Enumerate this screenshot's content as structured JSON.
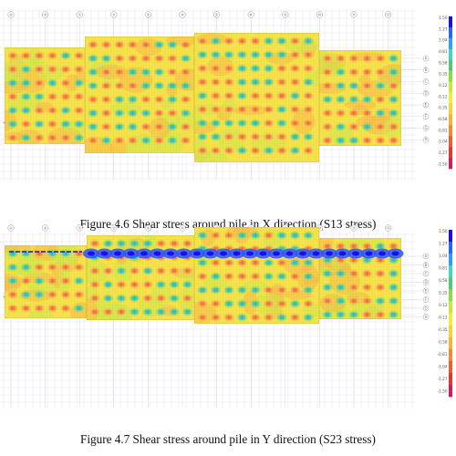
{
  "figures": [
    {
      "id": "fig1",
      "caption": "Figure 4.6 Shear stress around pile in X direction (S13 stress)",
      "legend_values": [
        "1.50",
        "1.27",
        "1.04",
        "0.81",
        "0.58",
        "0.35",
        "0.12",
        "-0.12",
        "-0.35",
        "-0.58",
        "-0.81",
        "-1.04",
        "-1.27",
        "-1.50"
      ],
      "legend_colors": [
        "#1a0df0",
        "#2166ff",
        "#29a0ff",
        "#3fd7c0",
        "#50c878",
        "#8fdb3e",
        "#c9e93a",
        "#f4ee3b",
        "#f7d33a",
        "#f6b23a",
        "#f18a36",
        "#ea5f31",
        "#e0382c",
        "#d41a5a"
      ],
      "grid_columns": [
        "①",
        "②",
        "③",
        "④",
        "⑤",
        "⑥",
        "⑦",
        "⑧",
        "⑨",
        "⑩",
        "⑪",
        "⑫"
      ],
      "grid_rows": [
        "A",
        "B",
        "C",
        "D",
        "E",
        "F",
        "G",
        "H"
      ]
    },
    {
      "id": "fig2",
      "caption": "Figure 4.7 Shear stress around pile in Y direction (S23 stress)",
      "legend_values": [
        "1.50",
        "1.27",
        "1.04",
        "0.81",
        "0.58",
        "0.35",
        "0.12",
        "-0.12",
        "-0.35",
        "-0.58",
        "-0.81",
        "-1.04",
        "-1.27",
        "-1.50"
      ],
      "legend_colors": [
        "#1a0df0",
        "#2166ff",
        "#29a0ff",
        "#3fd7c0",
        "#50c878",
        "#8fdb3e",
        "#c9e93a",
        "#f4ee3b",
        "#f7d33a",
        "#f6b23a",
        "#f18a36",
        "#ea5f31",
        "#e0382c",
        "#d41a5a"
      ],
      "grid_columns": [
        "①",
        "②",
        "③",
        "④",
        "⑤",
        "⑥",
        "⑦",
        "⑧",
        "⑨",
        "⑩",
        "⑪",
        "⑫"
      ],
      "grid_rows": [
        "A",
        "B",
        "C",
        "D",
        "E",
        "F",
        "G",
        "H"
      ]
    }
  ]
}
